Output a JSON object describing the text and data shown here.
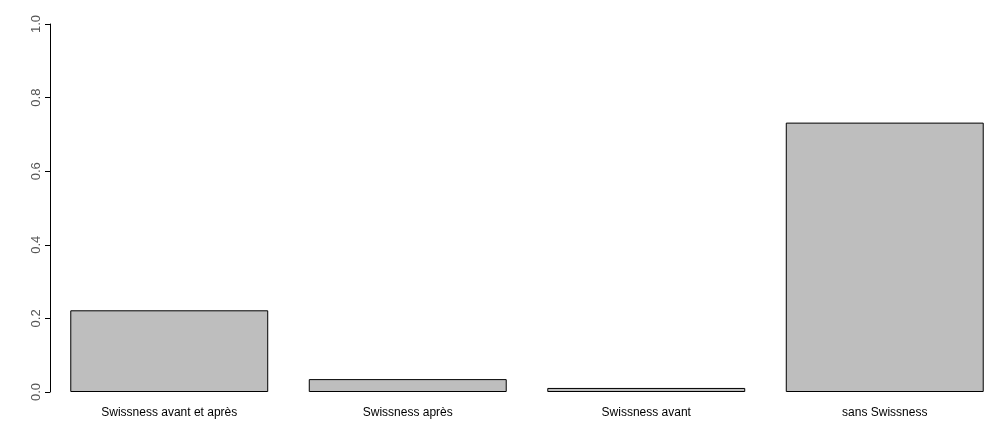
{
  "chart_data": {
    "type": "bar",
    "categories": [
      "Swissness avant et après",
      "Swissness après",
      "Swissness avant",
      "sans Swissness"
    ],
    "values": [
      0.222,
      0.035,
      0.011,
      0.732
    ],
    "color": "#bebebe",
    "ylim": [
      0,
      1
    ],
    "yticks": [
      {
        "value": 0,
        "label": "0.0"
      },
      {
        "value": 0.2,
        "label": "0.2"
      },
      {
        "value": 0.4,
        "label": "0.4"
      },
      {
        "value": 0.6,
        "label": "0.6"
      },
      {
        "value": 0.8,
        "label": "0.8"
      },
      {
        "value": 1,
        "label": "1.0"
      }
    ],
    "grid": false
  }
}
